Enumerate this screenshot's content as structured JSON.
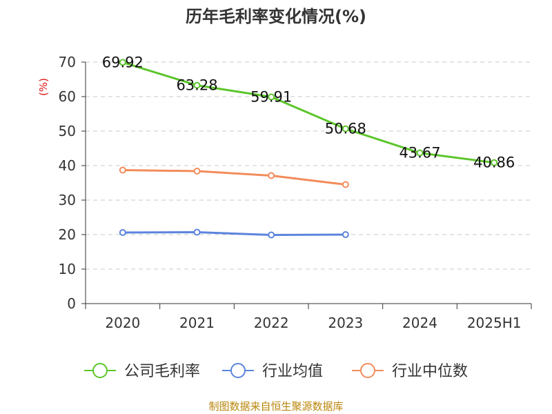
{
  "chart_data": {
    "type": "line",
    "title": "历年毛利率变化情况(%)",
    "ylabel": "(%)",
    "ylim": [
      0,
      70
    ],
    "yticks": [
      0,
      10,
      20,
      30,
      40,
      50,
      60,
      70
    ],
    "categories": [
      "2020",
      "2021",
      "2022",
      "2023",
      "2024",
      "2025H1"
    ],
    "grid": true,
    "legend_position": "bottom",
    "series": [
      {
        "name": "公司毛利率",
        "color": "#5cc52a",
        "values": [
          69.92,
          63.28,
          59.91,
          50.68,
          43.67,
          40.86
        ],
        "labels": [
          "69.92",
          "63.28",
          "59.91",
          "50.68",
          "43.67",
          "40.86"
        ]
      },
      {
        "name": "行业均值",
        "color": "#5b84dc",
        "values": [
          20.6,
          20.7,
          19.9,
          20.0,
          null,
          null
        ]
      },
      {
        "name": "行业中位数",
        "color": "#f28c5a",
        "values": [
          38.7,
          38.4,
          37.1,
          34.5,
          null,
          null
        ]
      }
    ],
    "source": "制图数据来自恒生聚源数据库"
  }
}
